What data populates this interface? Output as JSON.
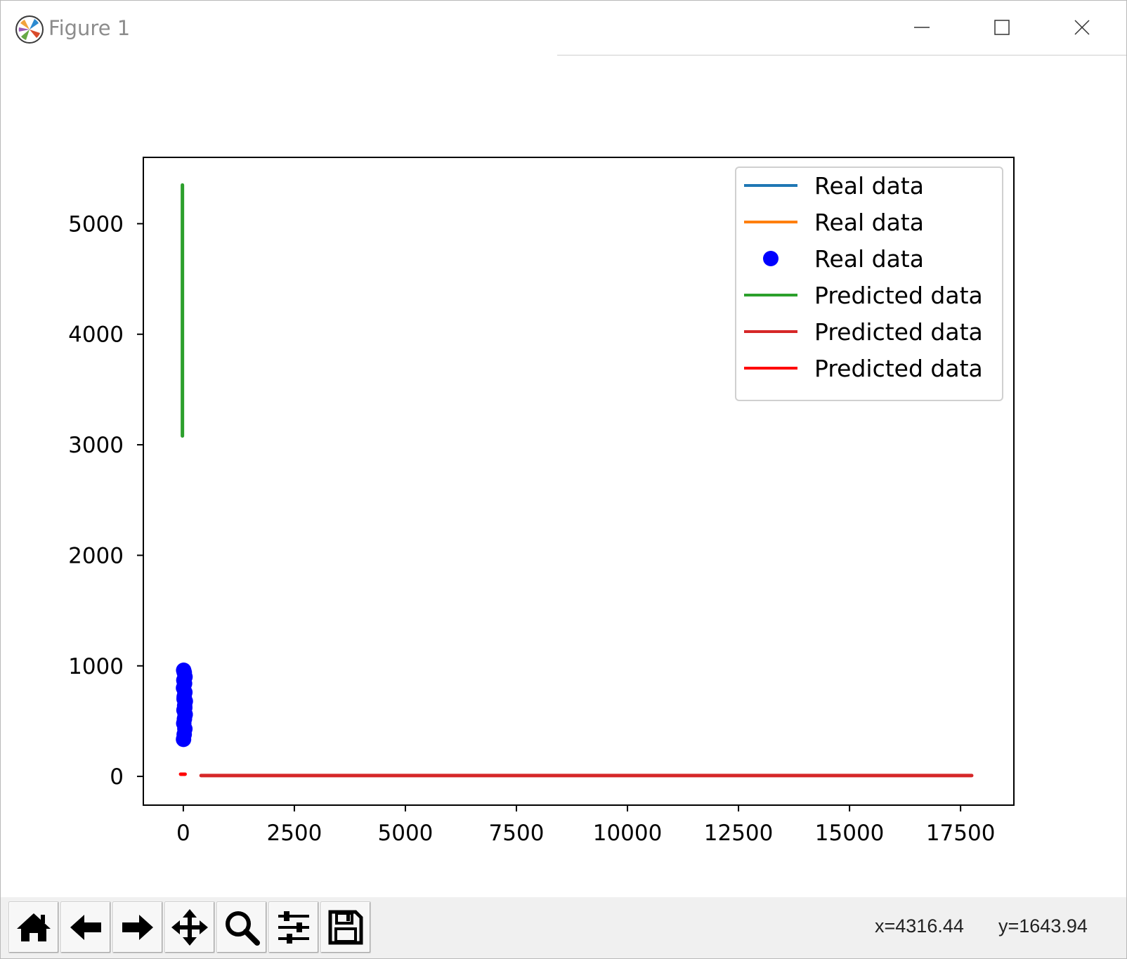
{
  "window": {
    "title": "Figure 1",
    "minimize_icon": "minimize-icon",
    "maximize_icon": "maximize-icon",
    "close_icon": "close-icon"
  },
  "toolbar": {
    "buttons": [
      {
        "name": "home-button",
        "icon": "home-icon"
      },
      {
        "name": "back-button",
        "icon": "arrow-left-icon"
      },
      {
        "name": "forward-button",
        "icon": "arrow-right-icon"
      },
      {
        "name": "pan-button",
        "icon": "move-icon"
      },
      {
        "name": "zoom-button",
        "icon": "search-icon"
      },
      {
        "name": "configure-subplots-button",
        "icon": "sliders-icon"
      },
      {
        "name": "save-button",
        "icon": "save-icon"
      }
    ],
    "coord_x": "x=4316.44",
    "coord_y": "y=1643.94"
  },
  "chart_data": {
    "type": "line",
    "title": "",
    "xlabel": "",
    "ylabel": "",
    "xlim": [
      -900,
      18700
    ],
    "ylim": [
      -260,
      5600
    ],
    "x_ticks": [
      0,
      2500,
      5000,
      7500,
      10000,
      12500,
      15000,
      17500
    ],
    "x_tick_labels": [
      "0",
      "2500",
      "5000",
      "7500",
      "10000",
      "12500",
      "15000",
      "17500"
    ],
    "y_ticks": [
      0,
      1000,
      2000,
      3000,
      4000,
      5000
    ],
    "y_tick_labels": [
      "0",
      "1000",
      "2000",
      "3000",
      "4000",
      "5000"
    ],
    "grid": false,
    "legend_position": "upper right",
    "series": [
      {
        "name": "Real data",
        "kind": "line",
        "color": "#1f77b4",
        "x": [],
        "y": []
      },
      {
        "name": "Real data",
        "kind": "line",
        "color": "#ff7f0e",
        "x": [],
        "y": []
      },
      {
        "name": "Real data",
        "kind": "scatter",
        "color": "#0000ff",
        "x": [
          5,
          20,
          35,
          10,
          25,
          40,
          15,
          30,
          45,
          20,
          35,
          5,
          28,
          12,
          38,
          22,
          8,
          33,
          18,
          42
        ],
        "y": [
          335,
          380,
          430,
          480,
          520,
          560,
          600,
          640,
          680,
          720,
          760,
          800,
          840,
          870,
          900,
          940,
          960,
          620,
          700,
          560
        ]
      },
      {
        "name": "Predicted data",
        "kind": "line",
        "color": "#2ca02c",
        "x": [
          -20,
          -20
        ],
        "y": [
          3080,
          5350
        ]
      },
      {
        "name": "Predicted data",
        "kind": "line",
        "color": "#d62728",
        "x": [
          400,
          17750
        ],
        "y": [
          8,
          8
        ]
      },
      {
        "name": "Predicted data",
        "kind": "line",
        "color": "#ff0000",
        "x": [
          -60,
          40
        ],
        "y": [
          20,
          20
        ]
      }
    ]
  }
}
